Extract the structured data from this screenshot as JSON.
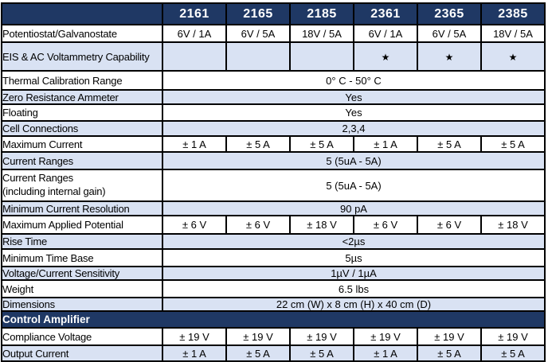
{
  "table": {
    "colors": {
      "header_bg": "#1F3864",
      "row_alt_bg": "#D9E2F3",
      "border": "#000000",
      "header_text": "#FFFFFF",
      "text": "#000000"
    },
    "corner_label": "",
    "columns": [
      "2161",
      "2165",
      "2185",
      "2361",
      "2365",
      "2385"
    ],
    "star_icon": "★",
    "rows": [
      {
        "type": "cells",
        "label": "Potentiostat/Galvanostate",
        "values": [
          "6V / 1A",
          "6V / 5A",
          "18V / 5A",
          "6V / 1A",
          "6V / 5A",
          "18V / 5A"
        ]
      },
      {
        "type": "cells",
        "label": "EIS & AC Voltammetry Capability",
        "values": [
          "",
          "",
          "",
          "★",
          "★",
          "★"
        ]
      },
      {
        "type": "merged",
        "label": "Thermal Calibration Range",
        "value": "0° C - 50° C"
      },
      {
        "type": "merged",
        "label": "Zero Resistance Ammeter",
        "value": "Yes"
      },
      {
        "type": "merged",
        "label": "Floating",
        "value": "Yes"
      },
      {
        "type": "merged",
        "label": "Cell Connections",
        "value": "2,3,4"
      },
      {
        "type": "cells",
        "label": "Maximum Current",
        "values": [
          "± 1 A",
          "± 5 A",
          "± 5 A",
          "± 1 A",
          "± 5 A",
          "± 5 A"
        ]
      },
      {
        "type": "merged",
        "label": "Current Ranges",
        "value": "5 (5uA - 5A)"
      },
      {
        "type": "merged",
        "label": "Current Ranges",
        "label2": "(including internal gain)",
        "value": "5 (5uA - 5A)"
      },
      {
        "type": "merged",
        "label": "Minimum Current Resolution",
        "value": "90 pA"
      },
      {
        "type": "cells",
        "label": "Maximum Applied Potential",
        "values": [
          "± 6 V",
          "± 6 V",
          "± 18 V",
          "± 6 V",
          "± 6 V",
          "± 18 V"
        ]
      },
      {
        "type": "merged",
        "label": "Rise Time",
        "value": "<2µs"
      },
      {
        "type": "merged",
        "label": "Minimum Time Base",
        "value": "5µs"
      },
      {
        "type": "merged",
        "label": "Voltage/Current Sensitivity",
        "value": "1µV / 1µA"
      },
      {
        "type": "merged",
        "label": "Weight",
        "value": "6.5 lbs"
      },
      {
        "type": "merged",
        "label": "Dimensions",
        "value": "22 cm (W) x 8 cm (H) x 40 cm (D)"
      },
      {
        "type": "section",
        "label": "Control Amplifier"
      },
      {
        "type": "cells",
        "label": "Compliance Voltage",
        "values": [
          "± 19 V",
          "± 19 V",
          "± 19 V",
          "± 19 V",
          "± 19 V",
          "± 19 V"
        ]
      },
      {
        "type": "cells",
        "label": "Output Current",
        "values": [
          "± 1 A",
          "± 5 A",
          "± 5 A",
          "± 1 A",
          "± 5 A",
          "± 5 A"
        ]
      }
    ]
  }
}
